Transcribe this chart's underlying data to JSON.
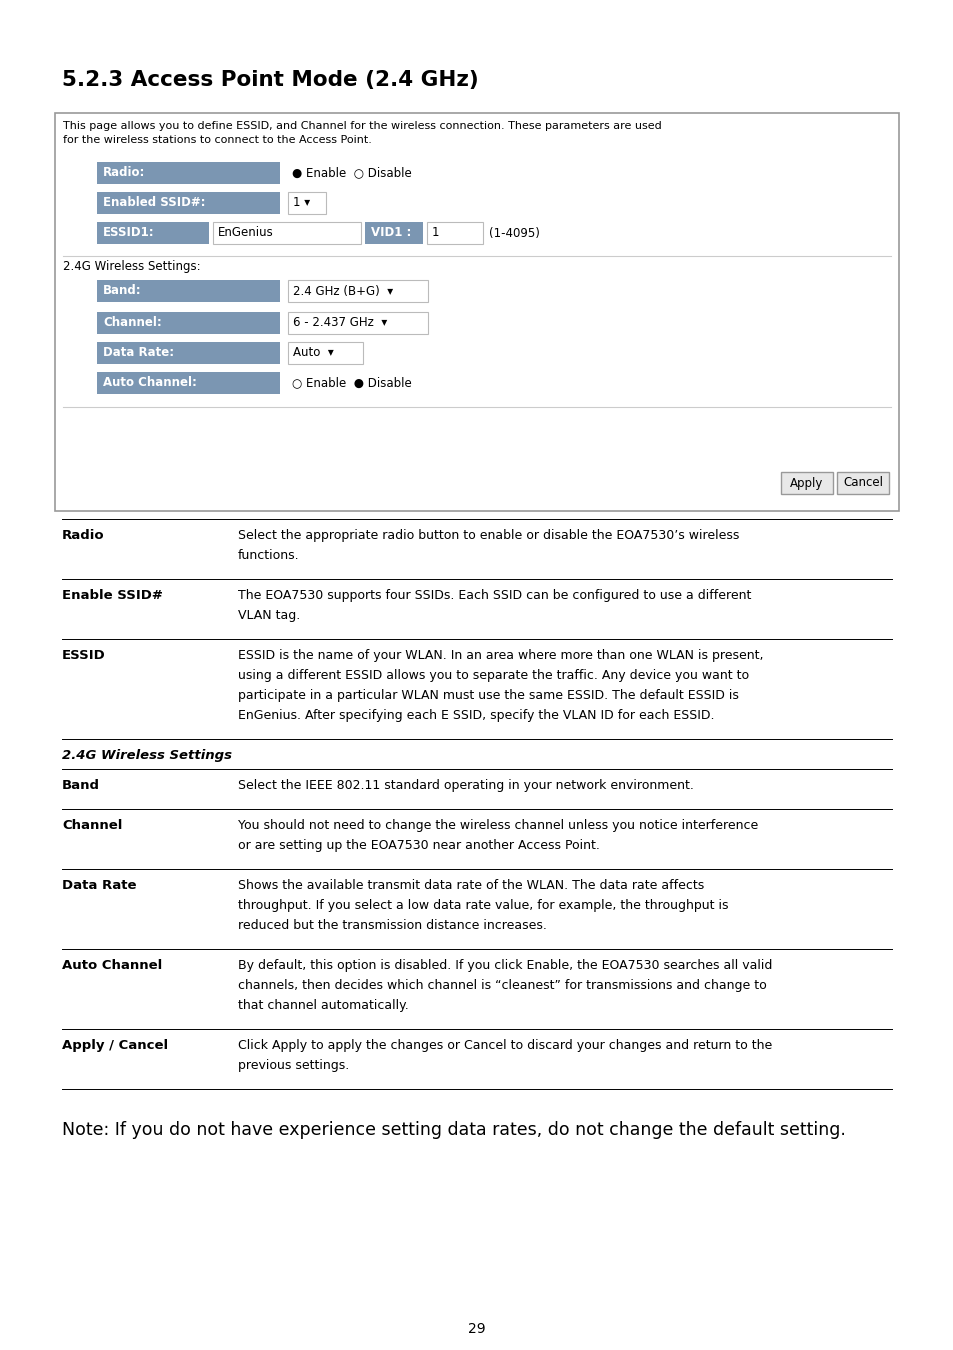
{
  "title": "5.2.3 Access Point Mode (2.4 GHz)",
  "page_number": "29",
  "note_text": "Note: If you do not have experience setting data rates, do not change the default setting.",
  "box_info_text_1": "This page allows you to define ESSID, and Channel for the wireless connection. These parameters are used",
  "box_info_text_2": "for the wireless stations to connect to the Access Point.",
  "wireless_label": "2.4G Wireless Settings:",
  "table_rows": [
    {
      "term": "Radio",
      "bold": true,
      "italic": false,
      "desc_lines": [
        "Select the appropriate radio button to enable or disable the EOA7530’s wireless",
        "functions."
      ]
    },
    {
      "term": "Enable SSID#",
      "bold": true,
      "italic": false,
      "desc_lines": [
        "The EOA7530 supports four SSIDs. Each SSID can be configured to use a different",
        "VLAN tag."
      ]
    },
    {
      "term": "ESSID",
      "bold": true,
      "italic": false,
      "desc_lines": [
        "ESSID is the name of your WLAN. In an area where more than one WLAN is present,",
        "using a different ESSID allows you to separate the traffic. Any device you want to",
        "participate in a particular WLAN must use the same ESSID. The default ESSID is",
        "EnGenius. After specifying each E SSID, specify the VLAN ID for each ESSID."
      ]
    },
    {
      "term": "2.4G Wireless Settings",
      "bold": true,
      "italic": true,
      "desc_lines": []
    },
    {
      "term": "Band",
      "bold": true,
      "italic": false,
      "desc_lines": [
        "Select the IEEE 802.11 standard operating in your network environment."
      ]
    },
    {
      "term": "Channel",
      "bold": true,
      "italic": false,
      "desc_lines": [
        "You should not need to change the wireless channel unless you notice interference",
        "or are setting up the EOA7530 near another Access Point."
      ]
    },
    {
      "term": "Data Rate",
      "bold": true,
      "italic": false,
      "desc_lines": [
        "Shows the available transmit data rate of the WLAN. The data rate affects",
        "throughput. If you select a low data rate value, for example, the throughput is",
        "reduced but the transmission distance increases."
      ]
    },
    {
      "term": "Auto Channel",
      "bold": true,
      "italic": false,
      "desc_lines": [
        "By default, this option is disabled. If you click Enable, the EOA7530 searches all valid",
        "channels, then decides which channel is “cleanest” for transmissions and change to",
        "that channel automatically."
      ]
    },
    {
      "term": "Apply / Cancel",
      "bold": true,
      "italic": false,
      "desc_lines": [
        "Click Apply to apply the changes or Cancel to discard your changes and return to the",
        "previous settings."
      ],
      "desc_bold_words": [
        "Apply",
        "Cancel"
      ]
    }
  ],
  "label_bg_color": "#7b96b2",
  "label_text_color": "#ffffff",
  "box_border_color": "#999999",
  "box_bg_color": "#ffffff",
  "button_bg_color": "#e8e8e8",
  "button_border_color": "#999999",
  "text_color": "#000000",
  "bg_color": "#ffffff",
  "line_color": "#aaaaaa",
  "table_line_color": "#000000"
}
